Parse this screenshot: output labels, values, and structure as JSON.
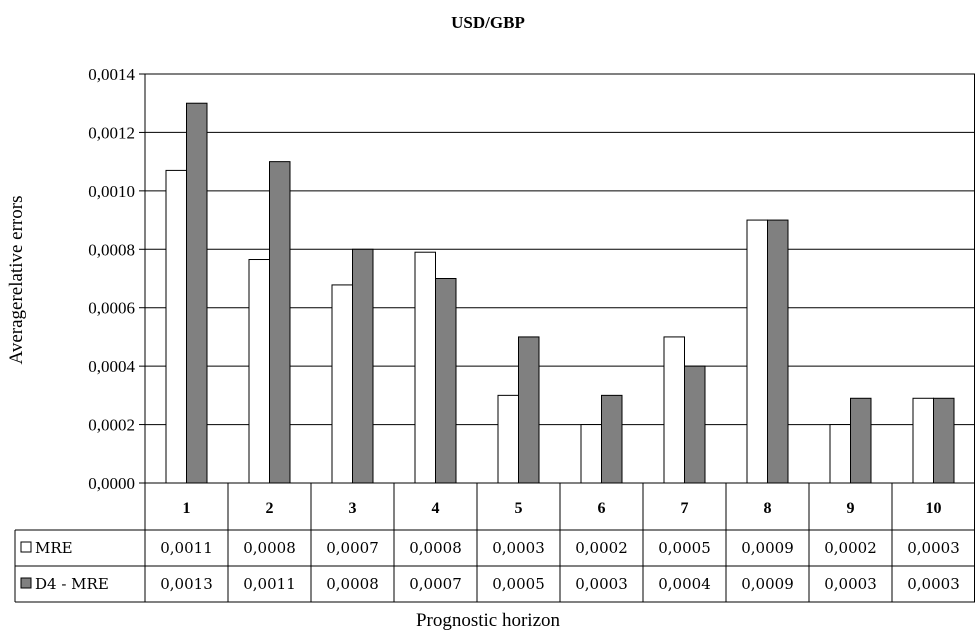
{
  "chart_data": {
    "type": "bar",
    "title": "USD/GBP",
    "xlabel": "Prognostic horizon",
    "ylabel": "Averagerelative errors",
    "ylim": [
      0,
      0.0014
    ],
    "yticks": [
      "0,0000",
      "0,0002",
      "0,0004",
      "0,0006",
      "0,0008",
      "0,0010",
      "0,0012",
      "0,0014"
    ],
    "categories": [
      "1",
      "2",
      "3",
      "4",
      "5",
      "6",
      "7",
      "8",
      "9",
      "10"
    ],
    "grid": true,
    "legend": "data-table-left",
    "series": [
      {
        "name": "MRE",
        "color": "#ffffff",
        "values": [
          0.00107,
          0.000765,
          0.000678,
          0.00079,
          0.0003,
          0.0002,
          0.0005,
          0.0009,
          0.0002,
          0.00029
        ],
        "labels": [
          "0,0011",
          "0,0008",
          "0,0007",
          "0,0008",
          "0,0003",
          "0,0002",
          "0,0005",
          "0,0009",
          "0,0002",
          "0,0003"
        ]
      },
      {
        "name": "D4 - MRE",
        "color": "#808080",
        "values": [
          0.0013,
          0.0011,
          0.0008,
          0.0007,
          0.0005,
          0.0003,
          0.0004,
          0.0009,
          0.00029,
          0.00029
        ],
        "labels": [
          "0,0013",
          "0,0011",
          "0,0008",
          "0,0007",
          "0,0005",
          "0,0003",
          "0,0004",
          "0,0009",
          "0,0003",
          "0,0003"
        ]
      }
    ]
  }
}
